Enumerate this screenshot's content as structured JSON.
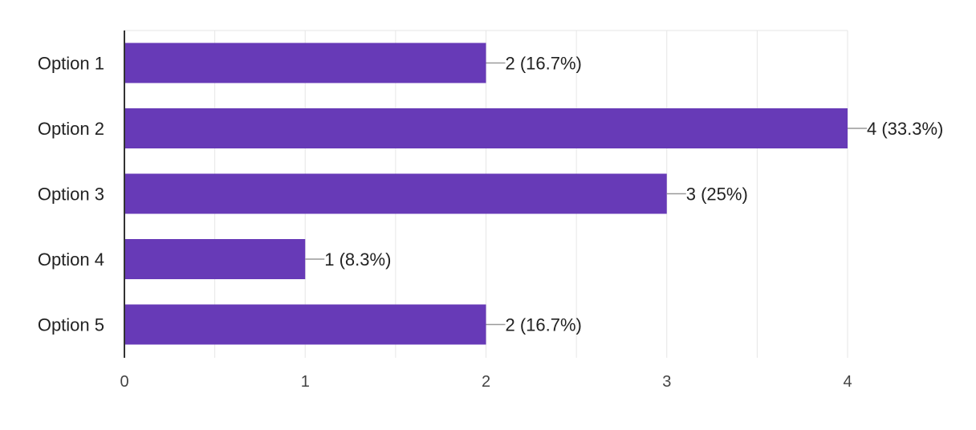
{
  "chart_data": {
    "type": "bar",
    "orientation": "horizontal",
    "categories": [
      "Option 1",
      "Option 2",
      "Option 3",
      "Option 4",
      "Option 5"
    ],
    "values": [
      2,
      4,
      3,
      1,
      2
    ],
    "data_labels": [
      "2 (16.7%)",
      "4 (33.3%)",
      "3 (25%)",
      "1 (8.3%)",
      "2 (16.7%)"
    ],
    "xlim": [
      0,
      4
    ],
    "x_ticks": [
      0,
      1,
      2,
      3,
      4
    ],
    "grid": true,
    "legend": "none",
    "colors": {
      "bar": "#673ab7",
      "grid": "#e6e6e6",
      "axis": "#333333",
      "leader": "#999999"
    }
  }
}
